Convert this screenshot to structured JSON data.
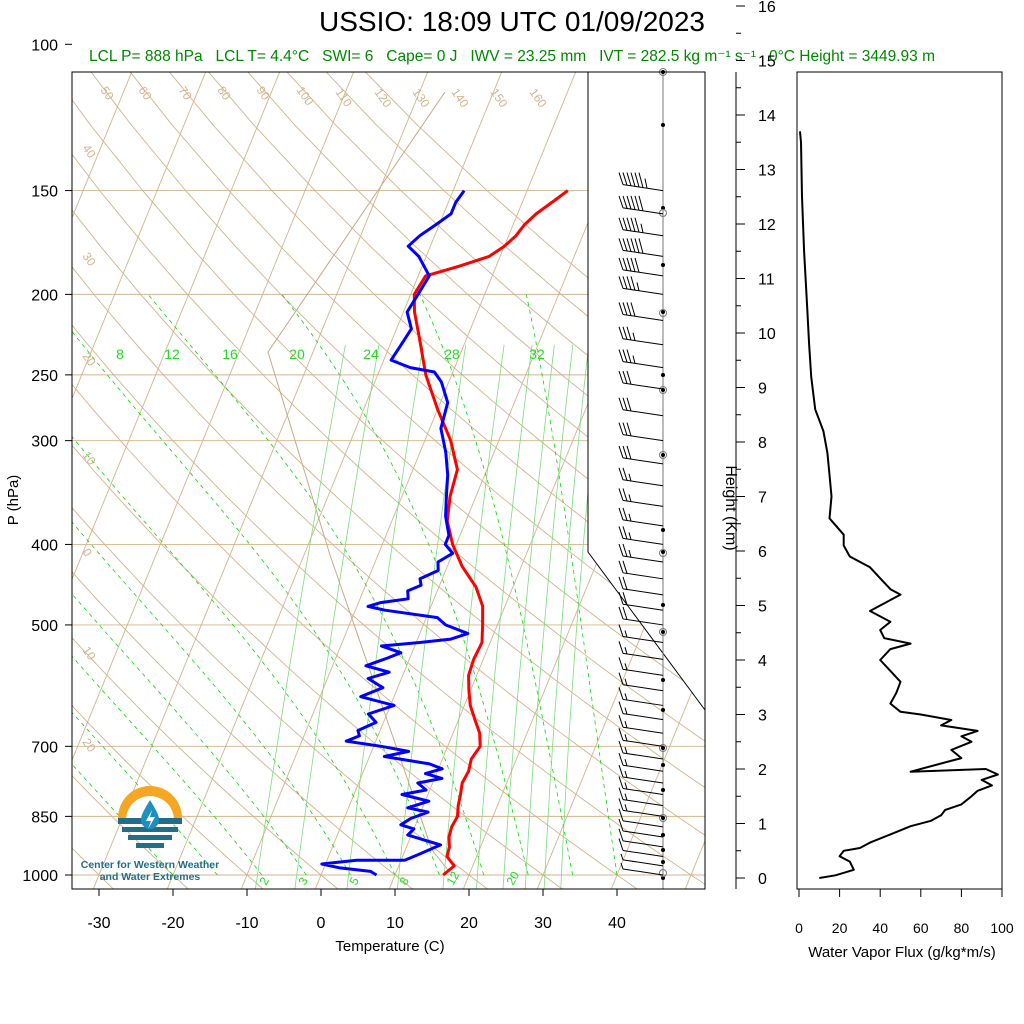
{
  "title": "USSIO: 18:09 UTC 01/09/2023",
  "subtitle": {
    "lcl_p": "LCL P= 888 hPa",
    "lcl_t": "LCL T= 4.4°C",
    "swi": "SWI= 6",
    "cape": "Cape= 0 J",
    "iwv": "IWV = 23.25 mm",
    "ivt": "IVT = 282.5 kg m⁻¹ s⁻¹",
    "freezing_height": "0°C Height = 3449.93 m"
  },
  "logo": {
    "caption_line1": "Center for Western Weather",
    "caption_line2": "and Water Extremes"
  },
  "colors": {
    "temperature": "#ff0000",
    "dewpoint": "#0000ff",
    "isotherm_adiabat": "#d2b48c",
    "mixing_ratio": "#00dd00",
    "flux": "#000000"
  },
  "chart_data": [
    {
      "type": "line",
      "subtype": "skew-t log-p sounding",
      "xlabel": "Temperature (C)",
      "ylabel": "P (hPa)",
      "xlim": [
        -34,
        52
      ],
      "ylim": [
        1050,
        100
      ],
      "y_scale": "log",
      "x_ticks": [
        "-30",
        "-20",
        "-10",
        "0",
        "10",
        "20",
        "30",
        "40"
      ],
      "y_ticks": [
        "100",
        "150",
        "200",
        "250",
        "300",
        "400",
        "500",
        "700",
        "850",
        "1000"
      ],
      "dry_adiabat_labels": [
        "50",
        "60",
        "70",
        "80",
        "90",
        "100",
        "110",
        "120",
        "130",
        "140",
        "150",
        "160",
        "40",
        "30",
        "20",
        "10",
        "0",
        "10",
        "20"
      ],
      "moist_adiabat_labels": [
        "30",
        "20",
        "10",
        "0",
        "10",
        "20",
        "30"
      ],
      "mixing_ratio_upper_labels": [
        "8",
        "12",
        "16",
        "20",
        "24",
        "28",
        "32"
      ],
      "mixing_ratio_lower_labels": [
        "2",
        "3",
        "5",
        "8",
        "12",
        "20"
      ],
      "series": [
        {
          "name": "Temperature",
          "points": [
            [
              16.5,
              1000
            ],
            [
              17.5,
              975
            ],
            [
              16.0,
              950
            ],
            [
              15.8,
              925
            ],
            [
              15.2,
              900
            ],
            [
              15.0,
              875
            ],
            [
              15.2,
              850
            ],
            [
              14.7,
              825
            ],
            [
              14.4,
              800
            ],
            [
              14.0,
              775
            ],
            [
              14.2,
              750
            ],
            [
              13.9,
              725
            ],
            [
              14.4,
              700
            ],
            [
              13.6,
              675
            ],
            [
              12.2,
              650
            ],
            [
              10.8,
              625
            ],
            [
              9.8,
              600
            ],
            [
              8.9,
              575
            ],
            [
              8.7,
              550
            ],
            [
              8.9,
              525
            ],
            [
              8.0,
              500
            ],
            [
              7.0,
              475
            ],
            [
              5.0,
              450
            ],
            [
              2.0,
              425
            ],
            [
              -0.5,
              400
            ],
            [
              -2.5,
              375
            ],
            [
              -3.5,
              350
            ],
            [
              -4.0,
              325
            ],
            [
              -6.5,
              300
            ],
            [
              -10.0,
              275
            ],
            [
              -13.5,
              250
            ],
            [
              -16.5,
              225
            ],
            [
              -18.5,
              210
            ],
            [
              -19.5,
              200
            ],
            [
              -19.0,
              190
            ],
            [
              -15.0,
              185
            ],
            [
              -11.5,
              180
            ],
            [
              -10.0,
              175
            ],
            [
              -9.0,
              170
            ],
            [
              -8.5,
              165
            ],
            [
              -7.5,
              160
            ],
            [
              -6.0,
              155
            ],
            [
              -4.5,
              150
            ]
          ]
        },
        {
          "name": "Dewpoint",
          "points": [
            [
              7.5,
              1000
            ],
            [
              6.5,
              990
            ],
            [
              2.0,
              980
            ],
            [
              -0.5,
              970
            ],
            [
              4.0,
              960
            ],
            [
              10.5,
              960
            ],
            [
              12.0,
              945
            ],
            [
              13.5,
              930
            ],
            [
              14.5,
              920
            ],
            [
              12.5,
              910
            ],
            [
              9.5,
              895
            ],
            [
              10.0,
              880
            ],
            [
              8.0,
              870
            ],
            [
              9.0,
              855
            ],
            [
              11.0,
              840
            ],
            [
              8.0,
              830
            ],
            [
              10.5,
              815
            ],
            [
              6.5,
              800
            ],
            [
              9.5,
              790
            ],
            [
              8.0,
              775
            ],
            [
              11.0,
              765
            ],
            [
              8.5,
              755
            ],
            [
              10.5,
              745
            ],
            [
              8.5,
              735
            ],
            [
              2.0,
              720
            ],
            [
              5.0,
              710
            ],
            [
              1.0,
              700
            ],
            [
              -4.0,
              690
            ],
            [
              -2.5,
              680
            ],
            [
              -3.0,
              670
            ],
            [
              -1.0,
              655
            ],
            [
              -2.5,
              640
            ],
            [
              0.5,
              625
            ],
            [
              -4.5,
              610
            ],
            [
              -2.0,
              595
            ],
            [
              -4.5,
              580
            ],
            [
              -2.0,
              570
            ],
            [
              -5.5,
              560
            ],
            [
              -3.0,
              548
            ],
            [
              -1.5,
              540
            ],
            [
              -4.5,
              530
            ],
            [
              0.5,
              525
            ],
            [
              4.5,
              520
            ],
            [
              6.5,
              512
            ],
            [
              3.0,
              500
            ],
            [
              1.5,
              490
            ],
            [
              -6.0,
              480
            ],
            [
              -8.5,
              475
            ],
            [
              -7.0,
              470
            ],
            [
              -3.5,
              465
            ],
            [
              -4.0,
              455
            ],
            [
              -2.5,
              448
            ],
            [
              -3.0,
              440
            ],
            [
              -1.0,
              430
            ],
            [
              -1.5,
              420
            ],
            [
              0.0,
              410
            ],
            [
              -1.5,
              400
            ],
            [
              -1.5,
              390
            ],
            [
              -3.0,
              370
            ],
            [
              -4.0,
              350
            ],
            [
              -5.0,
              330
            ],
            [
              -6.5,
              310
            ],
            [
              -8.5,
              290
            ],
            [
              -9.0,
              270
            ],
            [
              -11.0,
              255
            ],
            [
              -12.5,
              248
            ],
            [
              -16.0,
              245
            ],
            [
              -19.0,
              240
            ],
            [
              -18.5,
              230
            ],
            [
              -18.0,
              220
            ],
            [
              -19.5,
              210
            ],
            [
              -19.0,
              200
            ],
            [
              -18.5,
              190
            ],
            [
              -21.0,
              180
            ],
            [
              -23.0,
              175
            ],
            [
              -22.0,
              170
            ],
            [
              -20.5,
              165
            ],
            [
              -19.0,
              160
            ],
            [
              -19.0,
              155
            ],
            [
              -18.5,
              150
            ]
          ]
        }
      ]
    },
    {
      "type": "line",
      "subtype": "wind barbs",
      "levels_hpa": [
        150,
        160,
        170,
        180,
        190,
        200,
        215,
        230,
        245,
        260,
        280,
        300,
        320,
        340,
        360,
        380,
        400,
        420,
        440,
        460,
        480,
        500,
        525,
        550,
        575,
        600,
        625,
        650,
        675,
        700,
        725,
        750,
        775,
        800,
        825,
        850,
        875,
        900,
        925,
        950,
        975,
        1000
      ],
      "speeds_kt": [
        65,
        60,
        55,
        60,
        50,
        45,
        40,
        35,
        35,
        30,
        30,
        30,
        30,
        25,
        25,
        25,
        25,
        25,
        20,
        20,
        20,
        20,
        15,
        15,
        15,
        15,
        15,
        15,
        15,
        15,
        15,
        15,
        15,
        15,
        15,
        15,
        10,
        10,
        10,
        10,
        5,
        5
      ]
    },
    {
      "type": "line",
      "subtype": "height scale",
      "ylabel": "Height (Km)",
      "ylim": [
        -0.2,
        16.4
      ],
      "y_ticks": [
        "0",
        "1",
        "2",
        "3",
        "4",
        "5",
        "6",
        "7",
        "8",
        "9",
        "10",
        "11",
        "12",
        "13",
        "14",
        "15",
        "16"
      ]
    },
    {
      "type": "line",
      "xlabel": "Water Vapor Flux (g/kg*m/s)",
      "xlim": [
        0,
        100
      ],
      "ylim": [
        -0.2,
        16.4
      ],
      "x_ticks": [
        "0",
        "20",
        "40",
        "60",
        "80",
        "100"
      ],
      "series": [
        {
          "name": "Water Vapor Flux",
          "points": [
            [
              10,
              0
            ],
            [
              18,
              0.05
            ],
            [
              27,
              0.15
            ],
            [
              25,
              0.3
            ],
            [
              20,
              0.4
            ],
            [
              22,
              0.5
            ],
            [
              30,
              0.55
            ],
            [
              35,
              0.65
            ],
            [
              45,
              0.8
            ],
            [
              55,
              0.95
            ],
            [
              65,
              1.05
            ],
            [
              70,
              1.15
            ],
            [
              72,
              1.25
            ],
            [
              80,
              1.35
            ],
            [
              85,
              1.5
            ],
            [
              88,
              1.6
            ],
            [
              95,
              1.7
            ],
            [
              90,
              1.8
            ],
            [
              98,
              1.9
            ],
            [
              92,
              2.0
            ],
            [
              55,
              1.95
            ],
            [
              70,
              2.1
            ],
            [
              80,
              2.2
            ],
            [
              75,
              2.35
            ],
            [
              85,
              2.5
            ],
            [
              80,
              2.6
            ],
            [
              88,
              2.7
            ],
            [
              70,
              2.8
            ],
            [
              75,
              2.9
            ],
            [
              60,
              3.0
            ],
            [
              50,
              3.05
            ],
            [
              45,
              3.2
            ],
            [
              48,
              3.4
            ],
            [
              50,
              3.6
            ],
            [
              45,
              3.8
            ],
            [
              40,
              4.0
            ],
            [
              45,
              4.2
            ],
            [
              55,
              4.3
            ],
            [
              42,
              4.4
            ],
            [
              40,
              4.55
            ],
            [
              45,
              4.7
            ],
            [
              35,
              4.9
            ],
            [
              40,
              5.0
            ],
            [
              50,
              5.2
            ],
            [
              45,
              5.3
            ],
            [
              40,
              5.5
            ],
            [
              35,
              5.7
            ],
            [
              25,
              5.9
            ],
            [
              22,
              6.1
            ],
            [
              22,
              6.3
            ],
            [
              15,
              6.6
            ],
            [
              16,
              7.0
            ],
            [
              15,
              7.4
            ],
            [
              14,
              7.8
            ],
            [
              12,
              8.2
            ],
            [
              8,
              8.6
            ],
            [
              6,
              9.2
            ],
            [
              5,
              9.8
            ],
            [
              4,
              10.5
            ],
            [
              2.5,
              11.5
            ],
            [
              1.5,
              12.5
            ],
            [
              1,
              13.5
            ],
            [
              0.5,
              13.7
            ]
          ]
        }
      ]
    }
  ]
}
